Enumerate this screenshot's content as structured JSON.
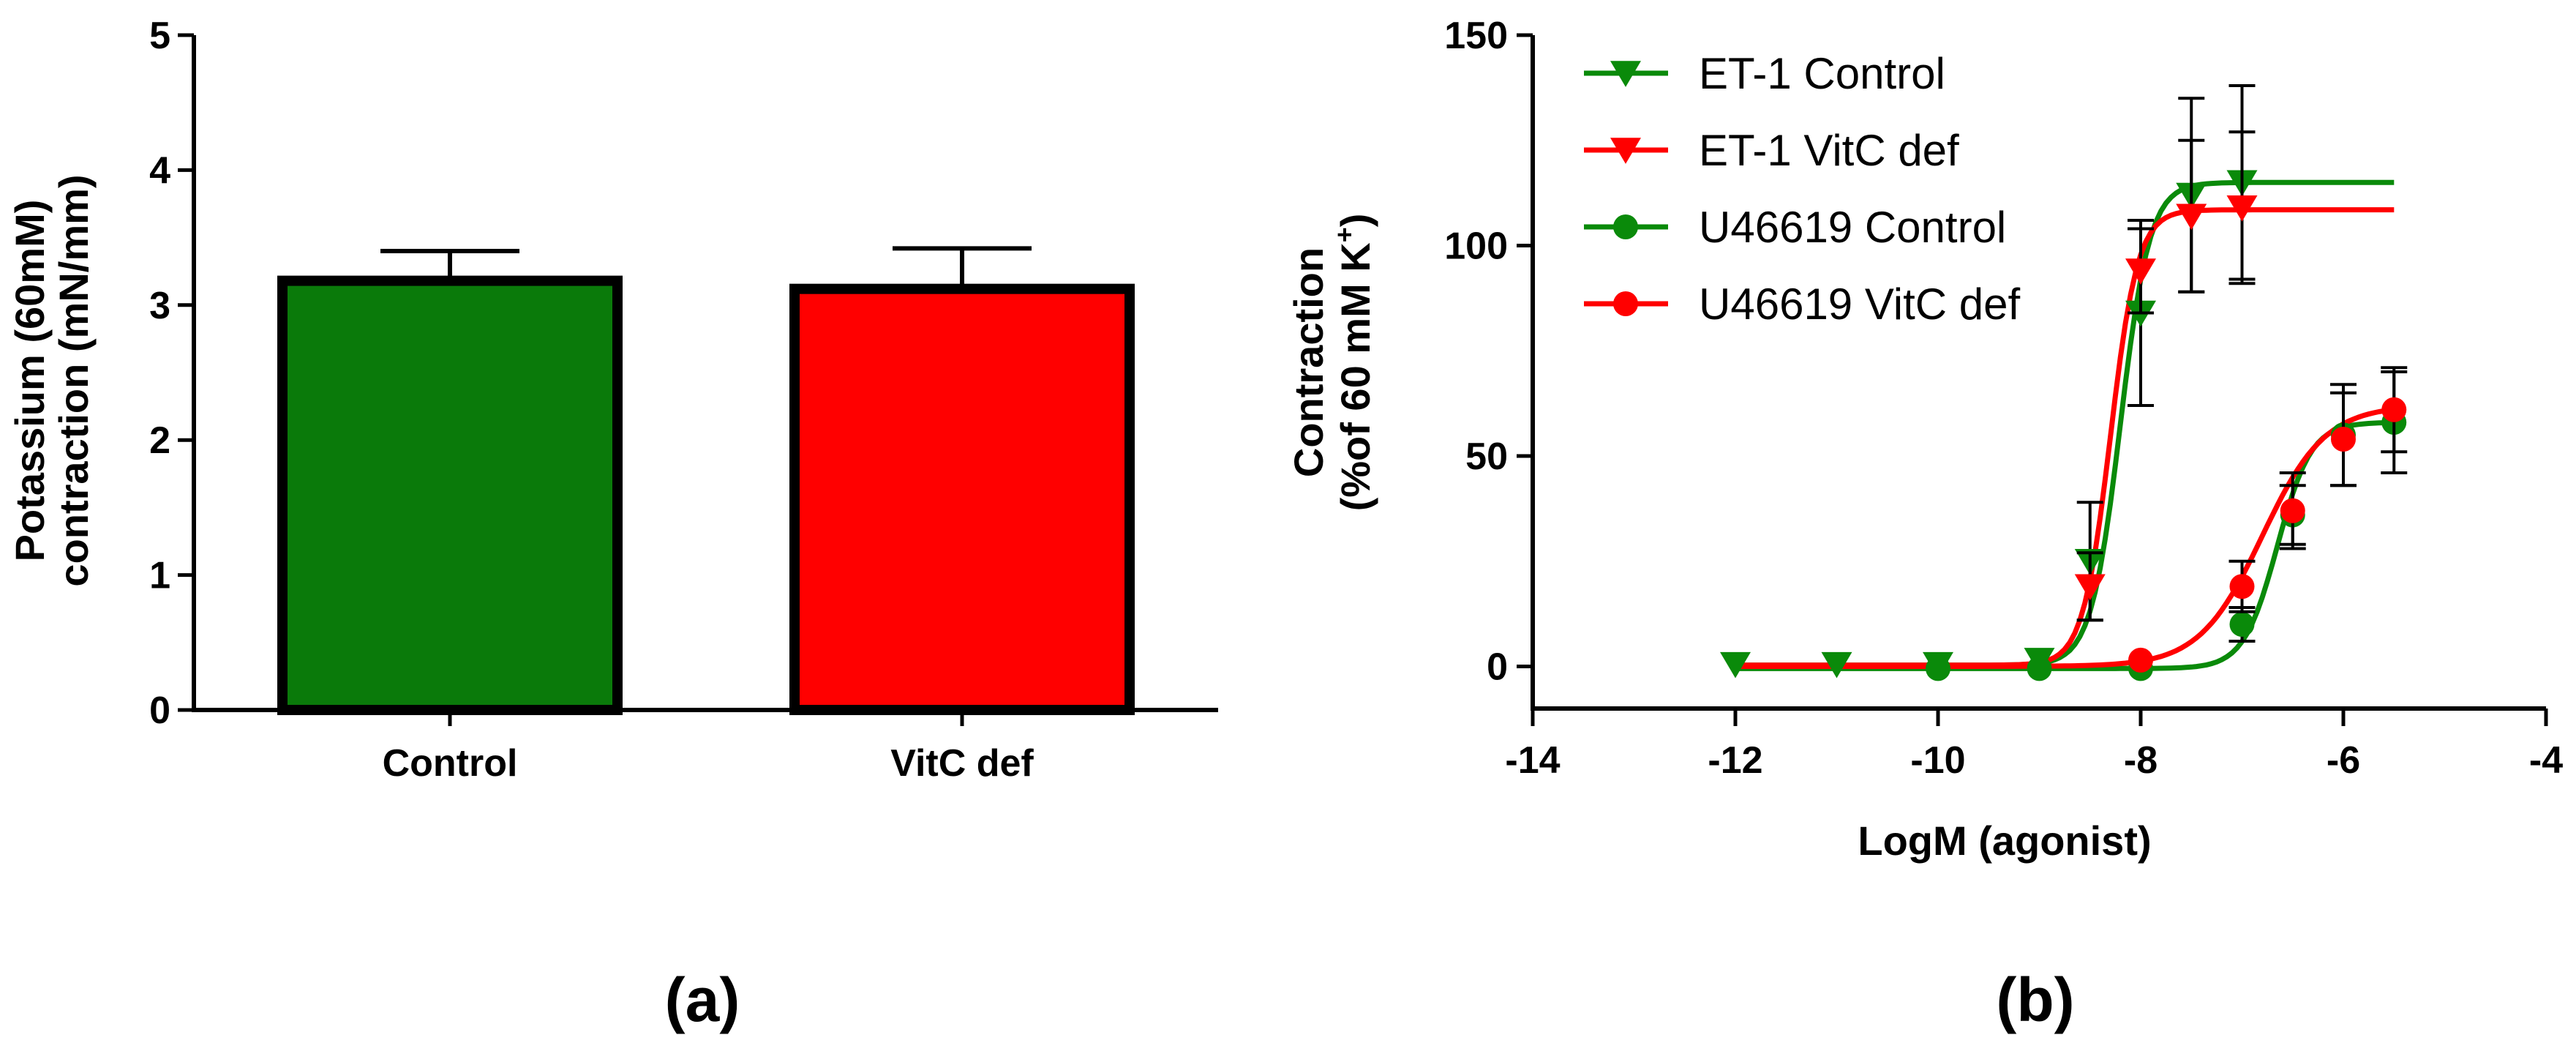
{
  "panels": {
    "a": "(a)",
    "b": "(b)"
  },
  "chart_data": [
    {
      "type": "bar",
      "title": "",
      "categories": [
        "Control",
        "VitC def"
      ],
      "values": [
        3.18,
        3.12
      ],
      "errors": [
        0.22,
        0.3
      ],
      "colors": [
        "#0a7a0a",
        "#ff0000"
      ],
      "ylabel_line1": "Potassium (60mM)",
      "ylabel_line2": "contraction (mN/mm)",
      "xlabel": "",
      "ylim": [
        0,
        5
      ],
      "yticks": [
        "0",
        "1",
        "2",
        "3",
        "4",
        "5"
      ]
    },
    {
      "type": "line",
      "title": "",
      "xlabel": "LogM (agonist)",
      "ylabel_line1": "Contraction",
      "ylabel_line2_prefix": "(%of 60 mM K",
      "ylabel_sup": "+",
      "ylabel_line2_suffix": ")",
      "xlim": [
        -14,
        -4
      ],
      "ylim": [
        -10,
        150
      ],
      "xticks": [
        "-14",
        "-12",
        "-10",
        "-8",
        "-6",
        "-4"
      ],
      "yticks": [
        "0",
        "50",
        "100",
        "150"
      ],
      "legend_position": "top-left",
      "series": [
        {
          "name": "ET-1 Control",
          "color": "#0a8a0a",
          "marker": "triangle-down",
          "x": [
            -12,
            -11,
            -10,
            -9,
            -8.5,
            -8,
            -7.5,
            -7
          ],
          "y": [
            0.5,
            0.5,
            0.5,
            1.5,
            25,
            84,
            112,
            115
          ],
          "err": [
            0,
            0,
            0,
            0,
            14,
            22,
            23,
            23
          ]
        },
        {
          "name": "ET-1 VitC def",
          "color": "#ff0000",
          "marker": "triangle-down",
          "x": [
            -8.5,
            -8,
            -7.5,
            -7
          ],
          "y": [
            19,
            94,
            107,
            109
          ],
          "err": [
            8,
            10,
            18,
            18
          ]
        },
        {
          "name": "U46619 Control",
          "color": "#0a8a0a",
          "marker": "circle",
          "x": [
            -10,
            -9,
            -8,
            -7,
            -6.5,
            -6,
            -5.5
          ],
          "y": [
            -0.5,
            -0.5,
            -0.5,
            10,
            36,
            55,
            58
          ],
          "err": [
            0,
            0,
            0,
            4,
            7,
            12,
            12
          ]
        },
        {
          "name": "U46619 VitC def",
          "color": "#ff0000",
          "marker": "circle",
          "x": [
            -8,
            -7,
            -6.5,
            -6,
            -5.5
          ],
          "y": [
            1.5,
            19,
            37,
            54,
            61
          ],
          "err": [
            0,
            6,
            9,
            11,
            10
          ]
        }
      ],
      "fits": [
        {
          "color": "#0a8a0a",
          "bottom": 0.3,
          "top": 115,
          "logEC50": -8.2,
          "hill": 3.0
        },
        {
          "color": "#ff0000",
          "bottom": 0.3,
          "top": 108.5,
          "logEC50": -8.3,
          "hill": 3.2
        },
        {
          "color": "#0a8a0a",
          "bottom": -0.5,
          "top": 58,
          "logEC50": -6.65,
          "hill": 2.6
        },
        {
          "color": "#ff0000",
          "bottom": 0.0,
          "top": 62,
          "logEC50": -6.8,
          "hill": 1.4
        }
      ]
    }
  ]
}
